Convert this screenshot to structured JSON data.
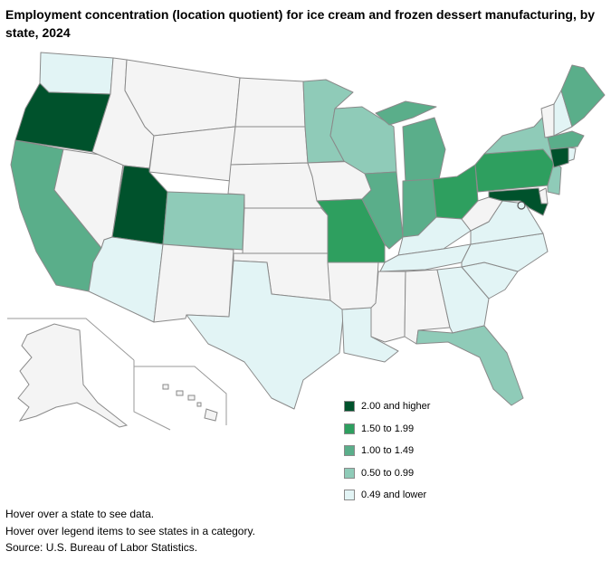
{
  "title": "Employment concentration (location quotient) for ice cream and frozen dessert manufacturing, by state, 2024",
  "legend": [
    {
      "label": "2.00 and higher",
      "color": "#00522c"
    },
    {
      "label": "1.50 to 1.99",
      "color": "#2e9f5f"
    },
    {
      "label": "1.00 to 1.49",
      "color": "#5aae8a"
    },
    {
      "label": "0.50 to 0.99",
      "color": "#8fcbb8"
    },
    {
      "label": "0.49 and lower",
      "color": "#e2f4f5"
    }
  ],
  "no_data_color": "#f4f4f4",
  "notes": [
    "Hover over a state to see data.",
    "Hover over legend items to see states in a category.",
    "Source: U.S. Bureau of Labor Statistics."
  ],
  "state_category": {
    "WA": 4,
    "OR": 0,
    "CA": 2,
    "NV": -1,
    "ID": -1,
    "MT": -1,
    "WY": -1,
    "UT": 0,
    "AZ": 4,
    "CO": 3,
    "NM": -1,
    "ND": -1,
    "SD": -1,
    "NE": -1,
    "KS": -1,
    "OK": -1,
    "TX": 4,
    "MN": 3,
    "IA": -1,
    "MO": 1,
    "AR": -1,
    "LA": 4,
    "WI": 3,
    "IL": 2,
    "MI": 2,
    "IN": 2,
    "OH": 1,
    "KY": 4,
    "TN": 4,
    "MS": -1,
    "AL": -1,
    "GA": 4,
    "FL": 3,
    "SC": 4,
    "NC": 4,
    "VA": 4,
    "WV": -1,
    "PA": 1,
    "NY": 3,
    "NJ": 3,
    "DE": -1,
    "MD": 0,
    "VT": -1,
    "NH": 4,
    "ME": 2,
    "MA": 2,
    "CT": 0,
    "RI": 4,
    "DC": 4
  }
}
